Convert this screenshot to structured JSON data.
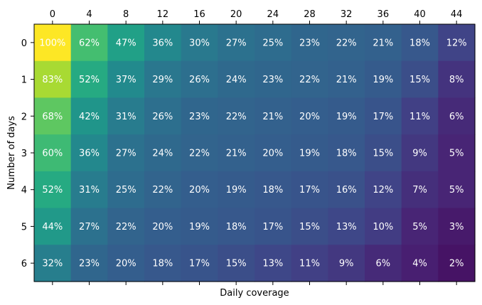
{
  "chart_data": {
    "type": "heatmap",
    "title": "",
    "xlabel": "Daily coverage",
    "ylabel": "Number of days",
    "x_ticks": [
      "0",
      "4",
      "8",
      "12",
      "16",
      "20",
      "24",
      "28",
      "32",
      "36",
      "40",
      "44"
    ],
    "y_ticks": [
      "0",
      "1",
      "2",
      "3",
      "4",
      "5",
      "6"
    ],
    "x_tick_position": "top",
    "colormap": "viridis",
    "value_range": [
      0,
      100
    ],
    "grid": false,
    "values": [
      [
        100,
        62,
        47,
        36,
        30,
        27,
        25,
        23,
        22,
        21,
        18,
        12
      ],
      [
        83,
        52,
        37,
        29,
        26,
        24,
        23,
        22,
        21,
        19,
        15,
        8
      ],
      [
        68,
        42,
        31,
        26,
        23,
        22,
        21,
        20,
        19,
        17,
        11,
        6
      ],
      [
        60,
        36,
        27,
        24,
        22,
        21,
        20,
        19,
        18,
        15,
        9,
        5
      ],
      [
        52,
        31,
        25,
        22,
        20,
        19,
        18,
        17,
        16,
        12,
        7,
        5
      ],
      [
        44,
        27,
        22,
        20,
        19,
        18,
        17,
        15,
        13,
        10,
        5,
        3
      ],
      [
        32,
        23,
        20,
        18,
        17,
        15,
        13,
        11,
        9,
        6,
        4,
        2
      ]
    ],
    "value_suffix": "%"
  }
}
